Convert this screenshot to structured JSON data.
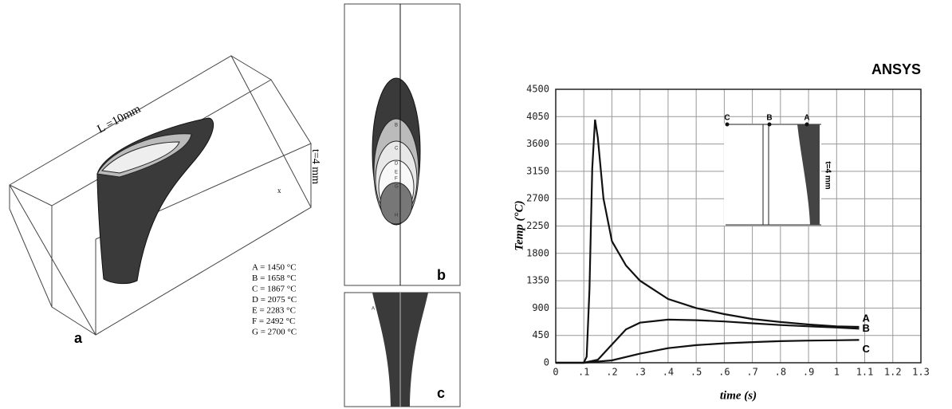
{
  "panels": {
    "a": {
      "label": "a",
      "length": "L =10mm",
      "thickness": "t=4 mm",
      "axis": "x",
      "legend": [
        "A = 1450 °C",
        "B = 1658 °C",
        "C = 1867 °C",
        "D = 2075 °C",
        "E = 2283 °C",
        "F = 2492 °C",
        "G = 2700 °C"
      ]
    },
    "b": {
      "label": "b",
      "contours": [
        "A",
        "B",
        "C",
        "D",
        "E",
        "F",
        "G",
        "H"
      ]
    },
    "c": {
      "label": "c",
      "contour": "A"
    }
  },
  "chart_data": {
    "type": "line",
    "logo": "ANSYS",
    "ylabel": "Temp  (°C)",
    "xlabel": "time (s)",
    "xlim": [
      0,
      1.3
    ],
    "ylim": [
      0,
      4500
    ],
    "grid": true,
    "xticks": [
      0,
      {
        "value": 0.1,
        "label": ".1"
      },
      {
        "value": 0.2,
        "label": ".2"
      },
      {
        "value": 0.3,
        "label": ".3"
      },
      {
        "value": 0.4,
        "label": ".4"
      },
      {
        "value": 0.5,
        "label": ".5"
      },
      {
        "value": 0.6,
        "label": ".6"
      },
      {
        "value": 0.7,
        "label": ".7"
      },
      {
        "value": 0.8,
        "label": ".8"
      },
      {
        "value": 0.9,
        "label": ".9"
      },
      1,
      1.1,
      1.2,
      1.3
    ],
    "yticks": [
      0,
      450,
      900,
      1350,
      1800,
      2250,
      2700,
      3150,
      3600,
      4050,
      4500
    ],
    "inset": {
      "points": [
        "C",
        "B",
        "A"
      ],
      "thickness": "t=4 mm"
    },
    "series": [
      {
        "name": "A",
        "color": "#111111",
        "x": [
          0,
          0.1,
          0.11,
          0.12,
          0.13,
          0.14,
          0.15,
          0.17,
          0.2,
          0.25,
          0.3,
          0.4,
          0.5,
          0.6,
          0.7,
          0.8,
          0.9,
          1.0,
          1.08
        ],
        "values": [
          0,
          0,
          100,
          1200,
          3200,
          4000,
          3700,
          2700,
          2000,
          1600,
          1350,
          1050,
          900,
          800,
          720,
          670,
          630,
          600,
          590
        ]
      },
      {
        "name": "B",
        "color": "#111111",
        "x": [
          0,
          0.1,
          0.15,
          0.2,
          0.25,
          0.3,
          0.4,
          0.5,
          0.6,
          0.7,
          0.8,
          0.9,
          1.0,
          1.08
        ],
        "values": [
          0,
          0,
          50,
          300,
          550,
          660,
          710,
          700,
          680,
          650,
          620,
          600,
          580,
          560
        ]
      },
      {
        "name": "C",
        "color": "#111111",
        "x": [
          0,
          0.1,
          0.2,
          0.3,
          0.4,
          0.5,
          0.6,
          0.7,
          0.8,
          0.9,
          1.0,
          1.08
        ],
        "values": [
          0,
          0,
          40,
          150,
          240,
          290,
          320,
          340,
          355,
          365,
          370,
          375
        ]
      }
    ]
  }
}
